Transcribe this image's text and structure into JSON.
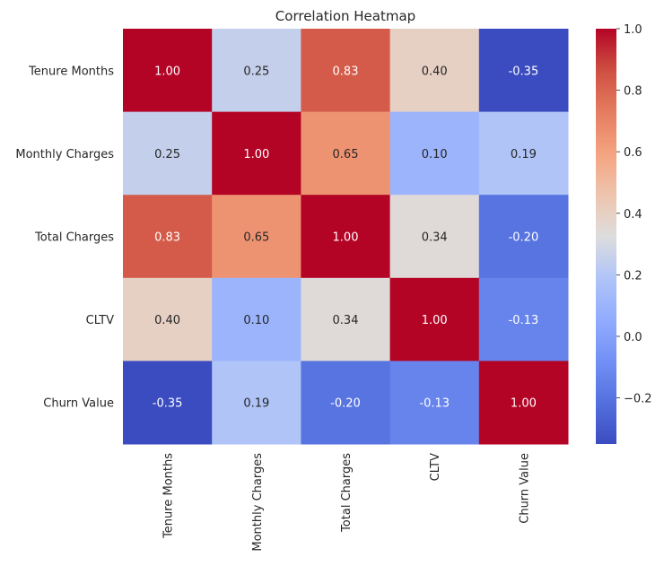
{
  "chart_data": {
    "type": "heatmap",
    "title": "Correlation Heatmap",
    "rows": [
      "Tenure Months",
      "Monthly Charges",
      "Total Charges",
      "CLTV",
      "Churn Value"
    ],
    "columns": [
      "Tenure Months",
      "Monthly Charges",
      "Total Charges",
      "CLTV",
      "Churn Value"
    ],
    "values": [
      [
        1.0,
        0.25,
        0.83,
        0.4,
        -0.35
      ],
      [
        0.25,
        1.0,
        0.65,
        0.1,
        0.19
      ],
      [
        0.83,
        0.65,
        1.0,
        0.34,
        -0.2
      ],
      [
        0.4,
        0.1,
        0.34,
        1.0,
        -0.13
      ],
      [
        -0.35,
        0.19,
        -0.2,
        -0.13,
        1.0
      ]
    ],
    "value_format": "0.00",
    "colormap": "coolwarm",
    "colorbar": {
      "range": [
        -0.35,
        1.0
      ],
      "ticks": [
        1.0,
        0.8,
        0.6,
        0.4,
        0.2,
        0.0,
        -0.2
      ],
      "tick_labels": [
        "1.0",
        "0.8",
        "0.6",
        "0.4",
        "0.2",
        "0.0",
        "−0.2"
      ]
    }
  }
}
